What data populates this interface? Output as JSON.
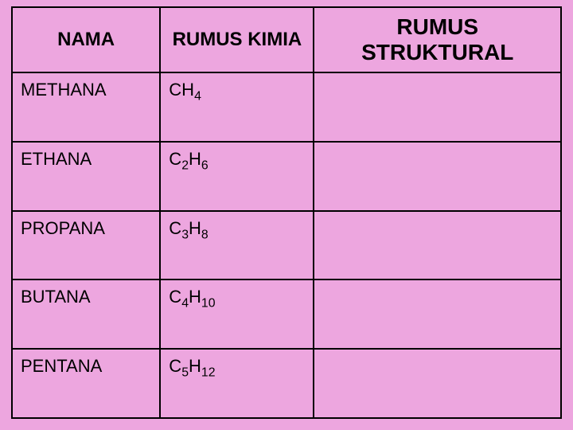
{
  "page": {
    "background_color": "#eda6df",
    "border_color": "#000000",
    "text_color": "#000000"
  },
  "table": {
    "type": "table",
    "header_fontsize": 24,
    "struct_header_fontsize": 28,
    "cell_fontsize": 22,
    "columns": [
      {
        "key": "nama",
        "label": "NAMA",
        "width_pct": 27,
        "header_align": "center"
      },
      {
        "key": "kimia",
        "label": "RUMUS KIMIA",
        "width_pct": 28,
        "header_align": "center"
      },
      {
        "key": "struct",
        "label": "RUMUS STRUKTURAL",
        "width_pct": 45,
        "header_align": "center"
      }
    ],
    "rows": [
      {
        "nama": "METHANA",
        "kimia_parts": [
          "CH",
          "4"
        ],
        "struct": ""
      },
      {
        "nama": "ETHANA",
        "kimia_parts": [
          "C",
          "2",
          "H",
          "6"
        ],
        "struct": ""
      },
      {
        "nama": "PROPANA",
        "kimia_parts": [
          "C",
          "3",
          "H",
          "8"
        ],
        "struct": ""
      },
      {
        "nama": "BUTANA",
        "kimia_parts": [
          "C",
          "4",
          "H",
          "10"
        ],
        "struct": ""
      },
      {
        "nama": "PENTANA",
        "kimia_parts": [
          "C",
          "5",
          "H",
          "12"
        ],
        "struct": ""
      }
    ]
  }
}
